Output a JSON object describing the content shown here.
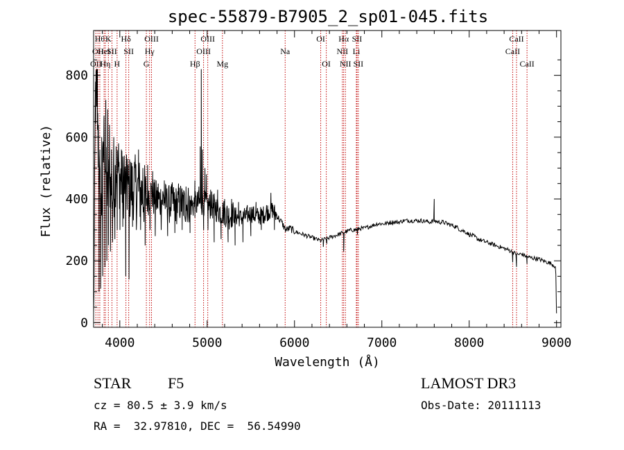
{
  "chart_data": {
    "type": "line",
    "title": "spec-55879-B7905_2_sp01-045.fits",
    "xlabel": "Wavelength (Å)",
    "ylabel": "Flux (relative)",
    "xlim": [
      3700,
      9050
    ],
    "ylim": [
      -15,
      945
    ],
    "xticks": [
      4000,
      5000,
      6000,
      7000,
      8000,
      9000
    ],
    "yticks": [
      0,
      200,
      400,
      600,
      800
    ],
    "grid": false,
    "series": [
      {
        "name": "spectrum",
        "line_color": "#000000",
        "anchors": [
          [
            3700,
            0
          ],
          [
            3710,
            320
          ],
          [
            3720,
            700
          ],
          [
            3735,
            760
          ],
          [
            3760,
            480
          ],
          [
            3790,
            360
          ],
          [
            3820,
            600
          ],
          [
            3850,
            430
          ],
          [
            3880,
            470
          ],
          [
            3920,
            410
          ],
          [
            3960,
            500
          ],
          [
            4000,
            470
          ],
          [
            4050,
            440
          ],
          [
            4100,
            430
          ],
          [
            4150,
            440
          ],
          [
            4200,
            430
          ],
          [
            4250,
            420
          ],
          [
            4300,
            400
          ],
          [
            4350,
            420
          ],
          [
            4400,
            400
          ],
          [
            4450,
            395
          ],
          [
            4500,
            400
          ],
          [
            4550,
            380
          ],
          [
            4600,
            390
          ],
          [
            4650,
            380
          ],
          [
            4700,
            390
          ],
          [
            4750,
            380
          ],
          [
            4800,
            385
          ],
          [
            4850,
            380
          ],
          [
            4900,
            385
          ],
          [
            4950,
            390
          ],
          [
            5000,
            375
          ],
          [
            5050,
            380
          ],
          [
            5100,
            370
          ],
          [
            5150,
            360
          ],
          [
            5200,
            355
          ],
          [
            5250,
            345
          ],
          [
            5300,
            350
          ],
          [
            5350,
            340
          ],
          [
            5400,
            340
          ],
          [
            5450,
            345
          ],
          [
            5500,
            355
          ],
          [
            5550,
            345
          ],
          [
            5600,
            345
          ],
          [
            5650,
            350
          ],
          [
            5700,
            360
          ],
          [
            5750,
            365
          ],
          [
            5800,
            345
          ],
          [
            5850,
            325
          ],
          [
            5900,
            300
          ],
          [
            5950,
            305
          ],
          [
            6000,
            295
          ],
          [
            6050,
            290
          ],
          [
            6100,
            285
          ],
          [
            6150,
            280
          ],
          [
            6200,
            275
          ],
          [
            6250,
            270
          ],
          [
            6300,
            265
          ],
          [
            6350,
            270
          ],
          [
            6400,
            275
          ],
          [
            6450,
            280
          ],
          [
            6500,
            285
          ],
          [
            6550,
            290
          ],
          [
            6600,
            295
          ],
          [
            6650,
            300
          ],
          [
            6700,
            300
          ],
          [
            6750,
            305
          ],
          [
            6800,
            305
          ],
          [
            6850,
            310
          ],
          [
            6900,
            315
          ],
          [
            6950,
            320
          ],
          [
            7000,
            320
          ],
          [
            7050,
            320
          ],
          [
            7100,
            325
          ],
          [
            7150,
            325
          ],
          [
            7200,
            325
          ],
          [
            7250,
            330
          ],
          [
            7300,
            330
          ],
          [
            7350,
            330
          ],
          [
            7400,
            330
          ],
          [
            7450,
            330
          ],
          [
            7500,
            328
          ],
          [
            7550,
            325
          ],
          [
            7600,
            330
          ],
          [
            7650,
            325
          ],
          [
            7700,
            325
          ],
          [
            7750,
            320
          ],
          [
            7800,
            315
          ],
          [
            7850,
            310
          ],
          [
            7900,
            300
          ],
          [
            7950,
            295
          ],
          [
            8000,
            285
          ],
          [
            8050,
            280
          ],
          [
            8100,
            270
          ],
          [
            8150,
            265
          ],
          [
            8200,
            260
          ],
          [
            8250,
            255
          ],
          [
            8300,
            250
          ],
          [
            8350,
            245
          ],
          [
            8400,
            240
          ],
          [
            8450,
            235
          ],
          [
            8500,
            228
          ],
          [
            8550,
            220
          ],
          [
            8600,
            222
          ],
          [
            8650,
            215
          ],
          [
            8700,
            210
          ],
          [
            8750,
            208
          ],
          [
            8800,
            205
          ],
          [
            8850,
            200
          ],
          [
            8900,
            195
          ],
          [
            8950,
            190
          ],
          [
            8990,
            180
          ],
          [
            9000,
            30
          ]
        ],
        "spikes": [
          [
            3722,
            780
          ],
          [
            3730,
            760
          ],
          [
            3736,
            700
          ],
          [
            3744,
            820
          ],
          [
            3755,
            640
          ],
          [
            3763,
            100
          ],
          [
            3772,
            560
          ],
          [
            3781,
            110
          ],
          [
            3793,
            600
          ],
          [
            3804,
            150
          ],
          [
            3818,
            660
          ],
          [
            3829,
            180
          ],
          [
            3840,
            720
          ],
          [
            3852,
            200
          ],
          [
            3861,
            690
          ],
          [
            3870,
            250
          ],
          [
            3882,
            640
          ],
          [
            3893,
            230
          ],
          [
            3905,
            560
          ],
          [
            3917,
            260
          ],
          [
            3931,
            600
          ],
          [
            3944,
            270
          ],
          [
            3958,
            570
          ],
          [
            3971,
            300
          ],
          [
            3986,
            580
          ],
          [
            4002,
            300
          ],
          [
            4018,
            560
          ],
          [
            4034,
            310
          ],
          [
            4052,
            540
          ],
          [
            4068,
            150
          ],
          [
            4088,
            530
          ],
          [
            4106,
            140
          ],
          [
            4126,
            520
          ],
          [
            4146,
            310
          ],
          [
            4168,
            520
          ],
          [
            4190,
            300
          ],
          [
            4214,
            560
          ],
          [
            4238,
            300
          ],
          [
            4264,
            500
          ],
          [
            4290,
            250
          ],
          [
            4318,
            510
          ],
          [
            4346,
            300
          ],
          [
            4376,
            490
          ],
          [
            4406,
            280
          ],
          [
            4440,
            450
          ],
          [
            4474,
            300
          ],
          [
            4510,
            460
          ],
          [
            4548,
            280
          ],
          [
            4588,
            440
          ],
          [
            4630,
            290
          ],
          [
            4672,
            450
          ],
          [
            4714,
            300
          ],
          [
            4758,
            440
          ],
          [
            4804,
            290
          ],
          [
            4860,
            460
          ],
          [
            4905,
            440
          ],
          [
            4921,
            570
          ],
          [
            4933,
            820
          ],
          [
            4946,
            560
          ],
          [
            4960,
            300
          ],
          [
            4975,
            500
          ],
          [
            4992,
            480
          ],
          [
            5010,
            300
          ],
          [
            5040,
            430
          ],
          [
            5080,
            260
          ],
          [
            5120,
            430
          ],
          [
            5160,
            270
          ],
          [
            5200,
            400
          ],
          [
            5240,
            260
          ],
          [
            5280,
            400
          ],
          [
            5320,
            250
          ],
          [
            5360,
            390
          ],
          [
            5410,
            260
          ],
          [
            5460,
            380
          ],
          [
            5500,
            280
          ],
          [
            5560,
            390
          ],
          [
            5620,
            300
          ],
          [
            5680,
            380
          ],
          [
            5730,
            420
          ],
          [
            5770,
            300
          ],
          [
            6330,
            245
          ],
          [
            6370,
            255
          ],
          [
            6563,
            230
          ],
          [
            6720,
            285
          ],
          [
            7600,
            400
          ],
          [
            8498,
            195
          ],
          [
            8542,
            180
          ],
          [
            8662,
            190
          ]
        ]
      }
    ],
    "line_markers": [
      {
        "wave": 3726,
        "label": "OII",
        "row": 2
      },
      {
        "wave": 3750,
        "label": "OII",
        "row": 1
      },
      {
        "wave": 3771,
        "label": "Hθ",
        "row": 0
      },
      {
        "wave": 3820,
        "label": "HeI",
        "row": 1
      },
      {
        "wave": 3835,
        "label": "Hη",
        "row": 2
      },
      {
        "wave": 3869,
        "label": "K",
        "row": 0
      },
      {
        "wave": 3910,
        "label": "SII",
        "row": 1
      },
      {
        "wave": 3969,
        "label": "H",
        "row": 2
      },
      {
        "wave": 4070,
        "label": "Hδ",
        "row": 0
      },
      {
        "wave": 4102,
        "label": "SII",
        "row": 1
      },
      {
        "wave": 4304,
        "label": "G",
        "row": 2
      },
      {
        "wave": 4341,
        "label": "Hγ",
        "row": 1
      },
      {
        "wave": 4363,
        "label": "OIII",
        "row": 0
      },
      {
        "wave": 4861,
        "label": "Hβ",
        "row": 2
      },
      {
        "wave": 4959,
        "label": "OIII",
        "row": 1
      },
      {
        "wave": 5007,
        "label": "OIII",
        "row": 0
      },
      {
        "wave": 5175,
        "label": "Mg",
        "row": 2
      },
      {
        "wave": 5893,
        "label": "Na",
        "row": 1
      },
      {
        "wave": 6300,
        "label": "OI",
        "row": 0
      },
      {
        "wave": 6364,
        "label": "OI",
        "row": 2
      },
      {
        "wave": 6548,
        "label": "NII",
        "row": 1
      },
      {
        "wave": 6563,
        "label": "Hα",
        "row": 0
      },
      {
        "wave": 6583,
        "label": "NII",
        "row": 2
      },
      {
        "wave": 6708,
        "label": "Li",
        "row": 1
      },
      {
        "wave": 6716,
        "label": "SII",
        "row": 0
      },
      {
        "wave": 6731,
        "label": "SII",
        "row": 2
      },
      {
        "wave": 8498,
        "label": "CaII",
        "row": 1
      },
      {
        "wave": 8542,
        "label": "CaII",
        "row": 0
      },
      {
        "wave": 8662,
        "label": "CaII",
        "row": 2
      }
    ]
  },
  "info": {
    "class": "STAR",
    "subclass": "F5",
    "survey": "LAMOST DR3",
    "redshift": "cz = 80.5 ± 3.9 km/s",
    "obs_date": "Obs-Date: 20111113",
    "coords": "RA =  32.97810, DEC =  56.54990"
  },
  "colors": {
    "marker_line": "#c00000",
    "axis": "#000000",
    "spectrum": "#000000"
  }
}
